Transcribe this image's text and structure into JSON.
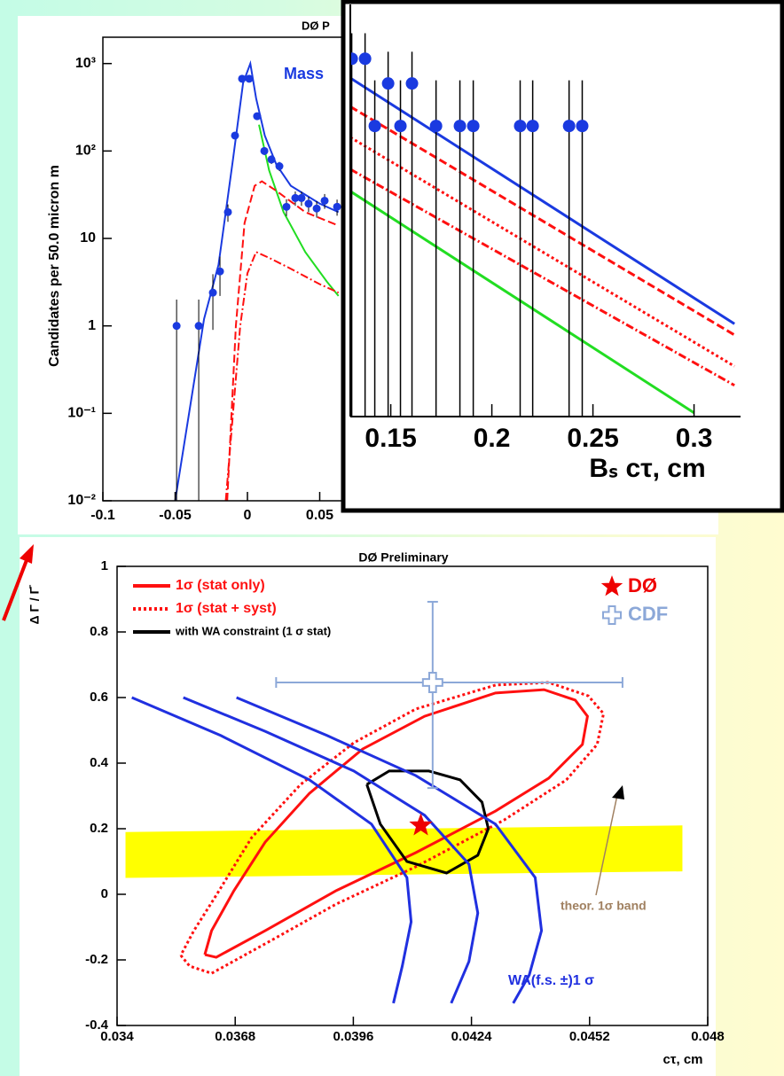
{
  "chart_data": [
    {
      "type": "scatter",
      "title": "DØ P",
      "y_label": "Candidates per 50.0 micron m",
      "legend_text": "Mass",
      "legend_color": "#1a3ae0",
      "log_y": true,
      "xlim": [
        -0.1,
        0.3
      ],
      "ylim": [
        0.01,
        2000
      ],
      "xticks": [
        -0.1,
        -0.05,
        0,
        0.05
      ],
      "yticks": [
        {
          "value": 0.01,
          "label": "10⁻²"
        },
        {
          "value": 0.1,
          "label": "10⁻¹"
        },
        1,
        10,
        {
          "value": 100,
          "label": "10²"
        },
        {
          "value": 1000,
          "label": "10³"
        }
      ],
      "points": {
        "color": "#1a3ae0",
        "x": [
          -0.049,
          -0.0337,
          -0.0239,
          -0.019,
          -0.0135,
          -0.0086,
          -0.0037,
          0.0012,
          0.0067,
          0.0117,
          0.0166,
          0.0221,
          0.027,
          0.0331,
          0.0374,
          0.0423,
          0.0479,
          0.0534,
          0.062
        ],
        "y": [
          1,
          1,
          2.4,
          4.2,
          20,
          150,
          670,
          670,
          250,
          100,
          80,
          67,
          23,
          29,
          29,
          25,
          22,
          27,
          23
        ],
        "yerr_low": [
          1,
          1,
          1.5,
          2,
          4.5,
          12,
          26,
          26,
          16,
          10,
          9,
          8,
          5,
          5.4,
          5.4,
          5,
          4.7,
          5.2,
          4.8
        ],
        "yerr_high": [
          1,
          1,
          1.5,
          2,
          4.5,
          12,
          26,
          26,
          16,
          10,
          9,
          8,
          5,
          5.4,
          5.4,
          5,
          4.7,
          5.2,
          4.8
        ]
      },
      "series": [
        {
          "color": "#1a3ae0",
          "style": "solid",
          "x": [
            -0.05,
            -0.03,
            -0.02,
            -0.01,
            -0.003,
            0.002,
            0.006,
            0.012,
            0.02,
            0.03,
            0.05,
            0.063
          ],
          "y": [
            0.01,
            1.2,
            5,
            80,
            600,
            1000,
            400,
            150,
            70,
            40,
            25,
            20
          ]
        },
        {
          "color": "#22dd22",
          "style": "solid",
          "x": [
            0.008,
            0.015,
            0.025,
            0.04,
            0.055,
            0.063
          ],
          "y": [
            200,
            60,
            20,
            7,
            3.2,
            2.2
          ]
        },
        {
          "color": "#ff1010",
          "style": "dashed",
          "x": [
            -0.014,
            -0.008,
            -0.002,
            0.005,
            0.01,
            0.02,
            0.04,
            0.063
          ],
          "y": [
            0.01,
            1,
            15,
            40,
            45,
            35,
            20,
            14
          ]
        },
        {
          "color": "#ff1010",
          "style": "dashdot",
          "x": [
            -0.015,
            -0.005,
            0,
            0.006,
            0.015,
            0.03,
            0.05,
            0.063
          ],
          "y": [
            0.01,
            1,
            4,
            7,
            6,
            4.5,
            3,
            2.4
          ]
        }
      ]
    },
    {
      "type": "scatter",
      "x_label": "Bₛ cτ,  cm",
      "log_y": true,
      "xlim": [
        0.13,
        0.323
      ],
      "ylim": [
        0.05,
        3.5
      ],
      "xticks": [
        0.15,
        0.2,
        0.25,
        0.3
      ],
      "points": {
        "color": "#1a3ae0",
        "x": [
          0.1307,
          0.1373,
          0.1421,
          0.1487,
          0.1548,
          0.1605,
          0.1724,
          0.1842,
          0.1908,
          0.214,
          0.2202,
          0.2382,
          0.2447
        ],
        "y": [
          2,
          2,
          1,
          1.55,
          1,
          1.55,
          1,
          1,
          1,
          1,
          1,
          1,
          1
        ],
        "yerr_low": [
          2,
          2,
          1,
          1.55,
          1,
          1.55,
          1,
          1,
          1,
          1,
          1,
          1,
          1
        ],
        "yerr_high": [
          0.6,
          0.6,
          0.6,
          0.6,
          0.6,
          0.6,
          0.6,
          0.6,
          0.6,
          0.6,
          0.6,
          0.6,
          0.6
        ]
      },
      "series": [
        {
          "color": "#1a3ae0",
          "style": "solid",
          "x": [
            0.13,
            0.32
          ],
          "y": [
            1.64,
            0.13
          ]
        },
        {
          "color": "#ff1010",
          "style": "dashed",
          "x": [
            0.13,
            0.32
          ],
          "y": [
            1.22,
            0.116
          ]
        },
        {
          "color": "#ff1010",
          "style": "dotted",
          "x": [
            0.13,
            0.32
          ],
          "y": [
            0.889,
            0.084
          ]
        },
        {
          "color": "#ff1010",
          "style": "dashdot",
          "x": [
            0.13,
            0.32
          ],
          "y": [
            0.64,
            0.069
          ]
        },
        {
          "color": "#22dd22",
          "style": "solid",
          "x": [
            0.13,
            0.3
          ],
          "y": [
            0.51,
            0.052
          ]
        }
      ]
    },
    {
      "type": "contour",
      "title": "DØ Preliminary",
      "x_label": "cτ, cm",
      "y_label": "Δ Γ / Γ̄",
      "xlim": [
        0.034,
        0.048
      ],
      "ylim": [
        -0.4,
        1
      ],
      "xticks": [
        0.034,
        0.0368,
        0.0396,
        0.0424,
        0.0452,
        0.048
      ],
      "yticks": [
        -0.4,
        -0.2,
        0,
        0.2,
        0.4,
        0.6,
        0.8,
        1
      ],
      "band": {
        "color": "#ffff00",
        "x": [
          0.0342,
          0.0474
        ],
        "y_low": [
          0.05,
          0.07
        ],
        "y_high": [
          0.19,
          0.21
        ]
      },
      "series": [
        {
          "name": "1σ (stat only)",
          "color": "#ff1010",
          "style": "solid",
          "x": [
            0.03608,
            0.03635,
            0.03751,
            0.03919,
            0.04108,
            0.04297,
            0.04423,
            0.04503,
            0.04515,
            0.04486,
            0.04412,
            0.04297,
            0.04129,
            0.03982,
            0.03856,
            0.03751,
            0.03677,
            0.03624,
            0.03608
          ],
          "y": [
            -0.184,
            -0.192,
            -0.111,
            0.011,
            0.127,
            0.254,
            0.354,
            0.457,
            0.543,
            0.592,
            0.624,
            0.614,
            0.543,
            0.443,
            0.308,
            0.159,
            0.011,
            -0.111,
            -0.184
          ]
        },
        {
          "name": "1σ (stat + syst)",
          "color": "#ff1010",
          "style": "dotted",
          "x": [
            0.03551,
            0.03572,
            0.03624,
            0.03751,
            0.03919,
            0.04108,
            0.04318,
            0.04465,
            0.04538,
            0.04553,
            0.04517,
            0.04423,
            0.04297,
            0.04108,
            0.03961,
            0.03835,
            0.03719,
            0.03635,
            0.03582,
            0.03551
          ],
          "y": [
            -0.186,
            -0.219,
            -0.241,
            -0.151,
            -0.03,
            0.084,
            0.227,
            0.349,
            0.457,
            0.551,
            0.605,
            0.646,
            0.638,
            0.565,
            0.462,
            0.335,
            0.173,
            -0.003,
            -0.111,
            -0.186
          ]
        },
        {
          "name": "with WA constraint (1 σ stat)",
          "color": "#000000",
          "style": "solid",
          "x": [
            0.03992,
            0.04024,
            0.04087,
            0.04181,
            0.04255,
            0.0428,
            0.04265,
            0.04213,
            0.04139,
            0.04045,
            0.03992
          ],
          "y": [
            0.335,
            0.214,
            0.1,
            0.065,
            0.119,
            0.2,
            0.281,
            0.349,
            0.376,
            0.376,
            0.335
          ]
        },
        {
          "color": "#2030e0",
          "style": "solid",
          "x": [
            0.03435,
            0.03646,
            0.03856,
            0.04003,
            0.04087,
            0.04097,
            0.04076,
            0.04055
          ],
          "y": [
            0.6,
            0.484,
            0.349,
            0.214,
            0.051,
            -0.084,
            -0.219,
            -0.332
          ]
        },
        {
          "color": "#2030e0",
          "style": "solid",
          "x": [
            0.03557,
            0.03751,
            0.03961,
            0.04129,
            0.04234,
            0.04255,
            0.04234,
            0.04192
          ],
          "y": [
            0.6,
            0.497,
            0.376,
            0.241,
            0.092,
            -0.057,
            -0.205,
            -0.332
          ]
        },
        {
          "color": "#2030e0",
          "style": "solid",
          "x": [
            0.03683,
            0.03898,
            0.04108,
            0.04297,
            0.04391,
            0.04406,
            0.04377,
            0.04339
          ],
          "y": [
            0.6,
            0.484,
            0.362,
            0.214,
            0.051,
            -0.111,
            -0.246,
            -0.332
          ]
        }
      ],
      "markers": [
        {
          "name": "DØ",
          "shape": "star",
          "color": "#ee0000",
          "x": 0.0412,
          "y": 0.21
        },
        {
          "name": "CDF",
          "shape": "cross",
          "color": "#8ca8d8",
          "x": 0.04148,
          "y": 0.646,
          "xerr_low": 0.00371,
          "xerr_high": 0.0045,
          "yerr_low": 0.322,
          "yerr_high": 0.246
        }
      ],
      "annotations": [
        {
          "text": "theor. 1σ band",
          "color": "#a08060"
        },
        {
          "text": "WA(f.s. ±)1 σ",
          "color": "#2030e0"
        }
      ]
    }
  ]
}
